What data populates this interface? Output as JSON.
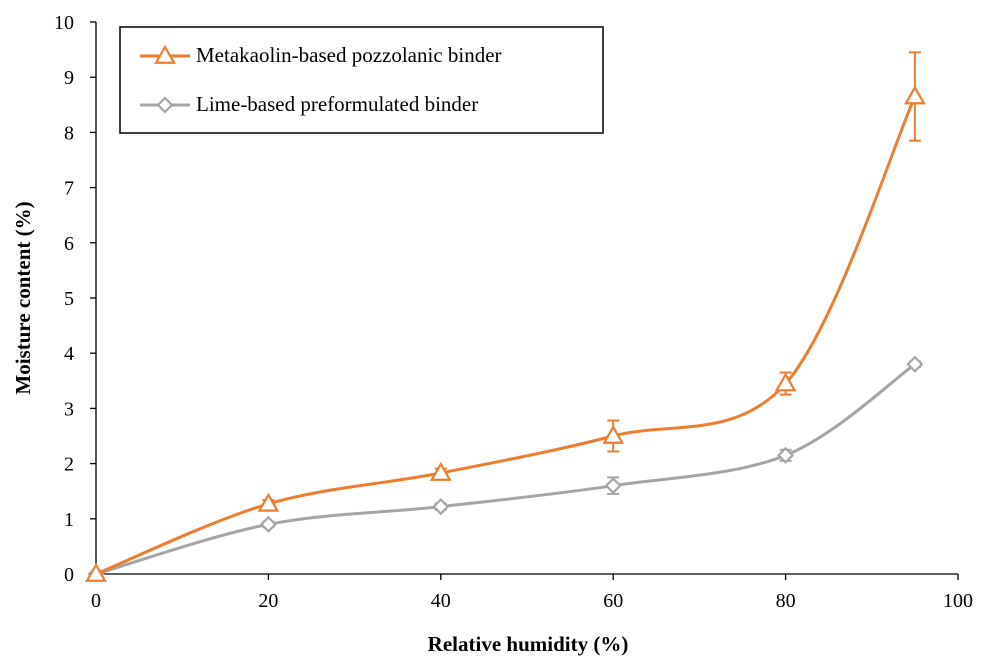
{
  "chart_data": {
    "type": "line",
    "xlabel": "Relative humidity  (%)",
    "ylabel": "Moisture  content (%)",
    "xlim": [
      0,
      100
    ],
    "ylim": [
      0,
      10
    ],
    "xticks": [
      "0",
      "20",
      "40",
      "60",
      "80",
      "100"
    ],
    "yticks": [
      "0",
      "1",
      "2",
      "3",
      "4",
      "5",
      "6",
      "7",
      "8",
      "9",
      "10"
    ],
    "grid": false,
    "legend_position": "top-left",
    "series": [
      {
        "name": "Metakaolin-based pozzolanic binder",
        "color": "#ED7D31",
        "marker": "triangle",
        "x": [
          0,
          20,
          40,
          60,
          80,
          95
        ],
        "y": [
          0,
          1.27,
          1.83,
          2.5,
          3.45,
          8.65
        ],
        "error": [
          0,
          0.07,
          0.08,
          0.28,
          0.2,
          0.8
        ]
      },
      {
        "name": "Lime-based preformulated binder",
        "color": "#A5A5A5",
        "marker": "diamond",
        "x": [
          0,
          20,
          40,
          60,
          80,
          95
        ],
        "y": [
          0,
          0.9,
          1.22,
          1.6,
          2.15,
          3.8
        ],
        "error": [
          0,
          0.05,
          0.06,
          0.15,
          0.1,
          0.05
        ]
      }
    ]
  }
}
